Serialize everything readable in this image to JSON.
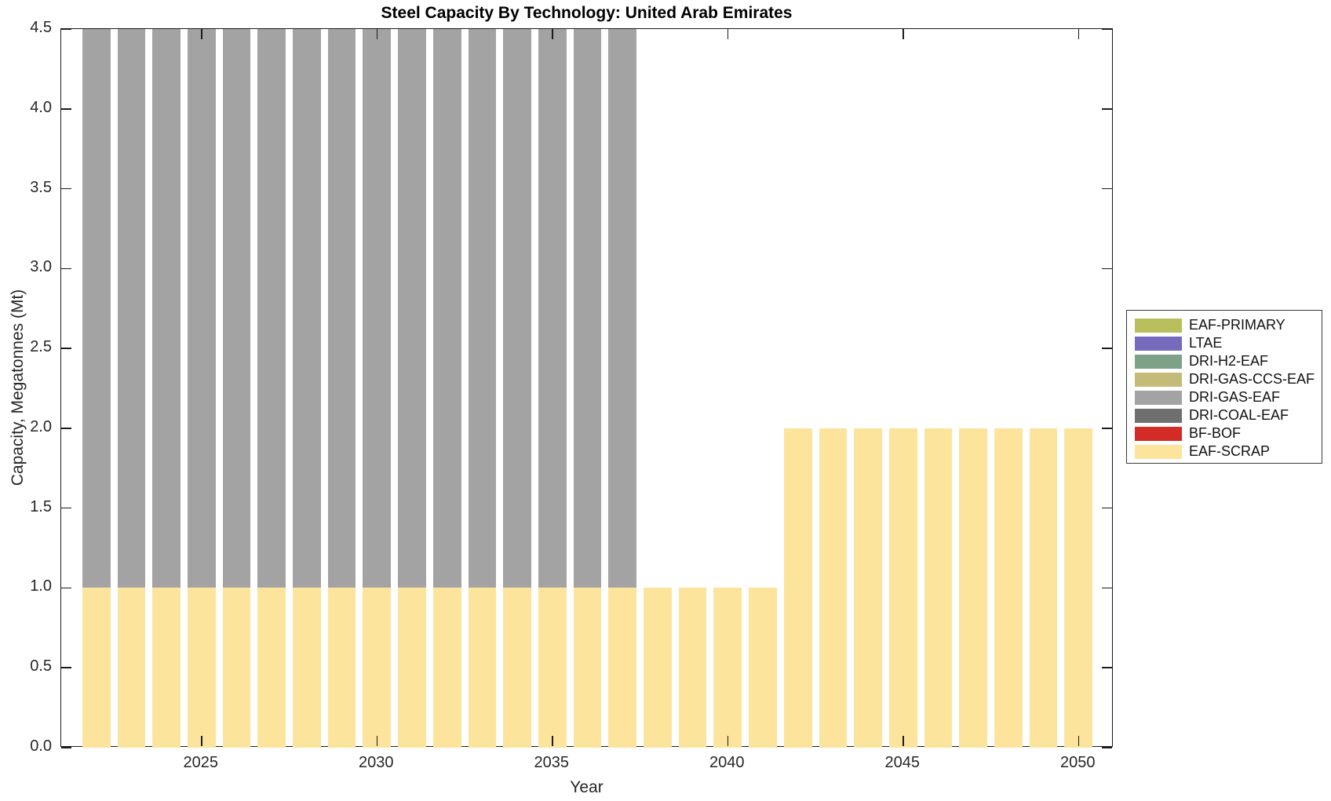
{
  "figure": {
    "title": "Steel Capacity By Technology: United Arab Emirates"
  },
  "chart_data": {
    "type": "bar",
    "stacked": true,
    "title": "Steel Capacity By Technology: United Arab Emirates",
    "xlabel": "Year",
    "ylabel": "Capacity, Megatonnes (Mt)",
    "xlim": [
      2021,
      2051
    ],
    "ylim": [
      0,
      4.5
    ],
    "ytick_step": 0.5,
    "xticks": [
      2025,
      2030,
      2035,
      2040,
      2045,
      2050
    ],
    "bar_width_years": 0.8,
    "grid": false,
    "years": [
      2022,
      2023,
      2024,
      2025,
      2026,
      2027,
      2028,
      2029,
      2030,
      2031,
      2032,
      2033,
      2034,
      2035,
      2036,
      2037,
      2038,
      2039,
      2040,
      2041,
      2042,
      2043,
      2044,
      2045,
      2046,
      2047,
      2048,
      2049,
      2050
    ],
    "series": [
      {
        "name": "EAF-SCRAP",
        "color": "#FCE49D",
        "values": [
          1.0,
          1.0,
          1.0,
          1.0,
          1.0,
          1.0,
          1.0,
          1.0,
          1.0,
          1.0,
          1.0,
          1.0,
          1.0,
          1.0,
          1.0,
          1.0,
          1.0,
          1.0,
          1.0,
          1.0,
          2.0,
          2.0,
          2.0,
          2.0,
          2.0,
          2.0,
          2.0,
          2.0,
          2.0
        ]
      },
      {
        "name": "DRI-GAS-EAF",
        "color": "#A3A3A3",
        "values": [
          3.5,
          3.5,
          3.5,
          3.5,
          3.5,
          3.5,
          3.5,
          3.5,
          3.5,
          3.5,
          3.5,
          3.5,
          3.5,
          3.5,
          3.5,
          3.5,
          0,
          0,
          0,
          0,
          0,
          0,
          0,
          0,
          0,
          0,
          0,
          0,
          0
        ]
      }
    ],
    "legend": {
      "position": "outside-right",
      "entries": [
        {
          "label": "EAF-PRIMARY",
          "color": "#B9BF5D"
        },
        {
          "label": "LTAE",
          "color": "#766ABC"
        },
        {
          "label": "DRI-H2-EAF",
          "color": "#7EA287"
        },
        {
          "label": "DRI-GAS-CCS-EAF",
          "color": "#C5BB79"
        },
        {
          "label": "DRI-GAS-EAF",
          "color": "#A3A3A3"
        },
        {
          "label": "DRI-COAL-EAF",
          "color": "#6F6F6F"
        },
        {
          "label": "BF-BOF",
          "color": "#D32B25"
        },
        {
          "label": "EAF-SCRAP",
          "color": "#FCE49D"
        }
      ]
    }
  }
}
